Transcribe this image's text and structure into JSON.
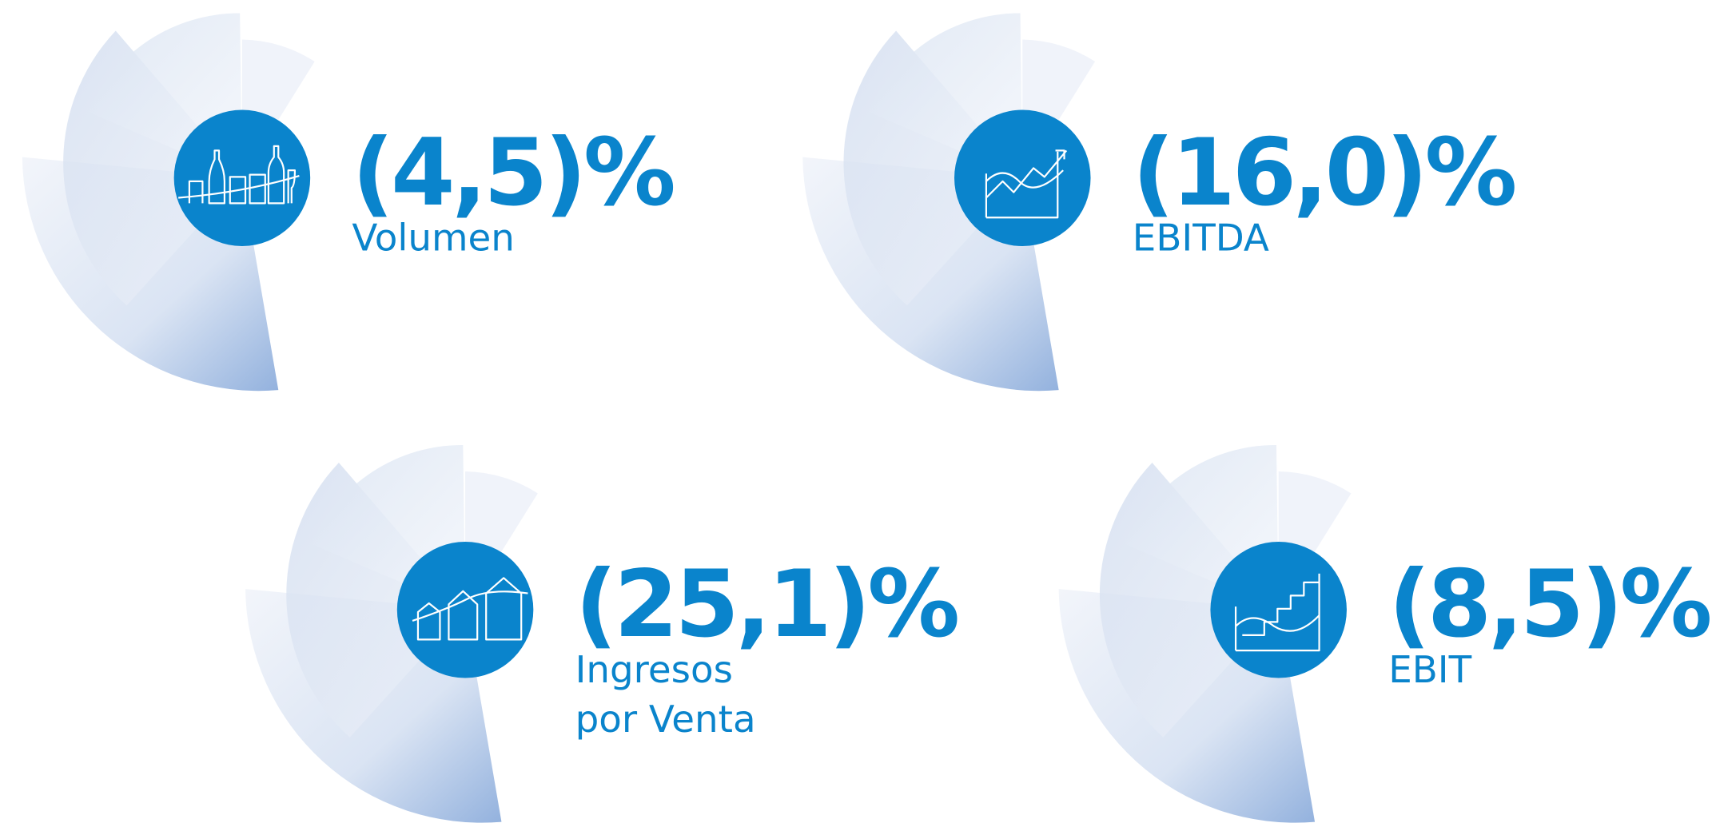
{
  "items": [
    {
      "value": "(4,5)%",
      "label": [
        "Volumen"
      ]
    },
    {
      "value": "(16,0)%",
      "label": [
        "EBITDA"
      ]
    },
    {
      "value": "(25,1)%",
      "label": [
        "Ingresos",
        "por Venta"
      ]
    },
    {
      "value": "(8,5)%",
      "label": [
        "EBIT"
      ]
    }
  ]
}
